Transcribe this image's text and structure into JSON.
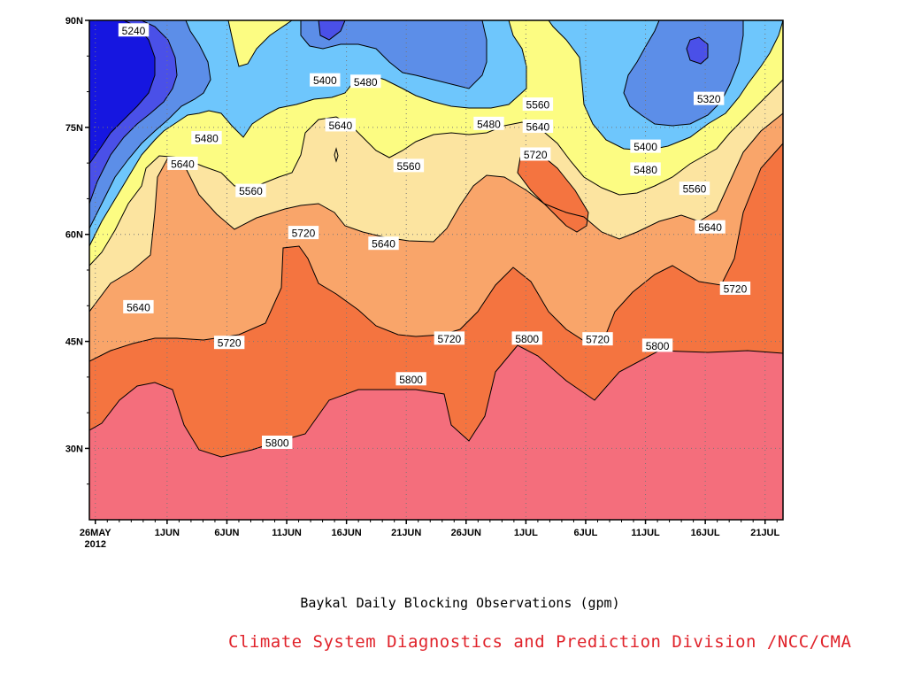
{
  "caption": "Baykal Daily Blocking Observations (gpm)",
  "credit": "Climate System Diagnostics and Prediction Division /NCC/CMA",
  "chart_data": {
    "type": "contour",
    "xlabel": "",
    "ylabel": "",
    "x_axis": {
      "ticks": [
        {
          "label": "26MAY",
          "sublabel": "2012",
          "day": 0
        },
        {
          "label": "1JUN",
          "day": 6
        },
        {
          "label": "6JUN",
          "day": 11
        },
        {
          "label": "11JUN",
          "day": 16
        },
        {
          "label": "16JUN",
          "day": 21
        },
        {
          "label": "21JUN",
          "day": 26
        },
        {
          "label": "26JUN",
          "day": 31
        },
        {
          "label": "1JUL",
          "day": 36
        },
        {
          "label": "6JUL",
          "day": 41
        },
        {
          "label": "11JUL",
          "day": 46
        },
        {
          "label": "16JUL",
          "day": 51
        },
        {
          "label": "21JUL",
          "day": 56
        }
      ],
      "range_days": [
        -0.5,
        57.5
      ]
    },
    "y_axis": {
      "ticks": [
        {
          "label": "30N",
          "lat": 30
        },
        {
          "label": "45N",
          "lat": 45
        },
        {
          "label": "60N",
          "lat": 60
        },
        {
          "label": "75N",
          "lat": 75
        },
        {
          "label": "90N",
          "lat": 90
        }
      ],
      "range_lat": [
        20,
        90
      ]
    },
    "grid": "dotted",
    "levels": [
      5240,
      5320,
      5400,
      5480,
      5560,
      5640,
      5720,
      5800
    ],
    "fill_colors": {
      "lt5240": "#1616e0",
      "5240": "#4a50e8",
      "5320": "#5c8ee8",
      "5400": "#6ec6fc",
      "5480": "#fcfc82",
      "5560": "#fce4a0",
      "5640": "#f9a56a",
      "5720": "#f47440",
      "ge5800": "#f46e7c"
    },
    "contour_labels": [
      {
        "text": "5240",
        "day": 3.2,
        "lat": 88.6
      },
      {
        "text": "5400",
        "day": 19.2,
        "lat": 81.6
      },
      {
        "text": "5480",
        "day": 22.6,
        "lat": 81.4
      },
      {
        "text": "5320",
        "day": 51.3,
        "lat": 79.0
      },
      {
        "text": "5480",
        "day": 9.3,
        "lat": 73.5
      },
      {
        "text": "5640",
        "day": 20.5,
        "lat": 75.3
      },
      {
        "text": "5480",
        "day": 32.9,
        "lat": 75.5
      },
      {
        "text": "5560",
        "day": 37.0,
        "lat": 78.2
      },
      {
        "text": "5640",
        "day": 37.0,
        "lat": 75.1
      },
      {
        "text": "5720",
        "day": 36.8,
        "lat": 71.2
      },
      {
        "text": "5640",
        "day": 7.3,
        "lat": 69.9
      },
      {
        "text": "5560",
        "day": 13.0,
        "lat": 66.1
      },
      {
        "text": "5560",
        "day": 26.2,
        "lat": 69.6
      },
      {
        "text": "5400",
        "day": 46.0,
        "lat": 72.3
      },
      {
        "text": "5480",
        "day": 46.0,
        "lat": 69.1
      },
      {
        "text": "5560",
        "day": 50.1,
        "lat": 66.4
      },
      {
        "text": "5720",
        "day": 17.4,
        "lat": 60.2
      },
      {
        "text": "5640",
        "day": 24.1,
        "lat": 58.7
      },
      {
        "text": "5640",
        "day": 51.4,
        "lat": 61.0
      },
      {
        "text": "5720",
        "day": 53.5,
        "lat": 52.4
      },
      {
        "text": "5640",
        "day": 3.6,
        "lat": 49.8
      },
      {
        "text": "5720",
        "day": 11.2,
        "lat": 44.8
      },
      {
        "text": "5720",
        "day": 29.6,
        "lat": 45.4
      },
      {
        "text": "5800",
        "day": 36.1,
        "lat": 45.4
      },
      {
        "text": "5720",
        "day": 42.0,
        "lat": 45.3
      },
      {
        "text": "5800",
        "day": 47.0,
        "lat": 44.4
      },
      {
        "text": "5800",
        "day": 26.4,
        "lat": 39.7
      },
      {
        "text": "5800",
        "day": 15.2,
        "lat": 30.8
      }
    ]
  }
}
